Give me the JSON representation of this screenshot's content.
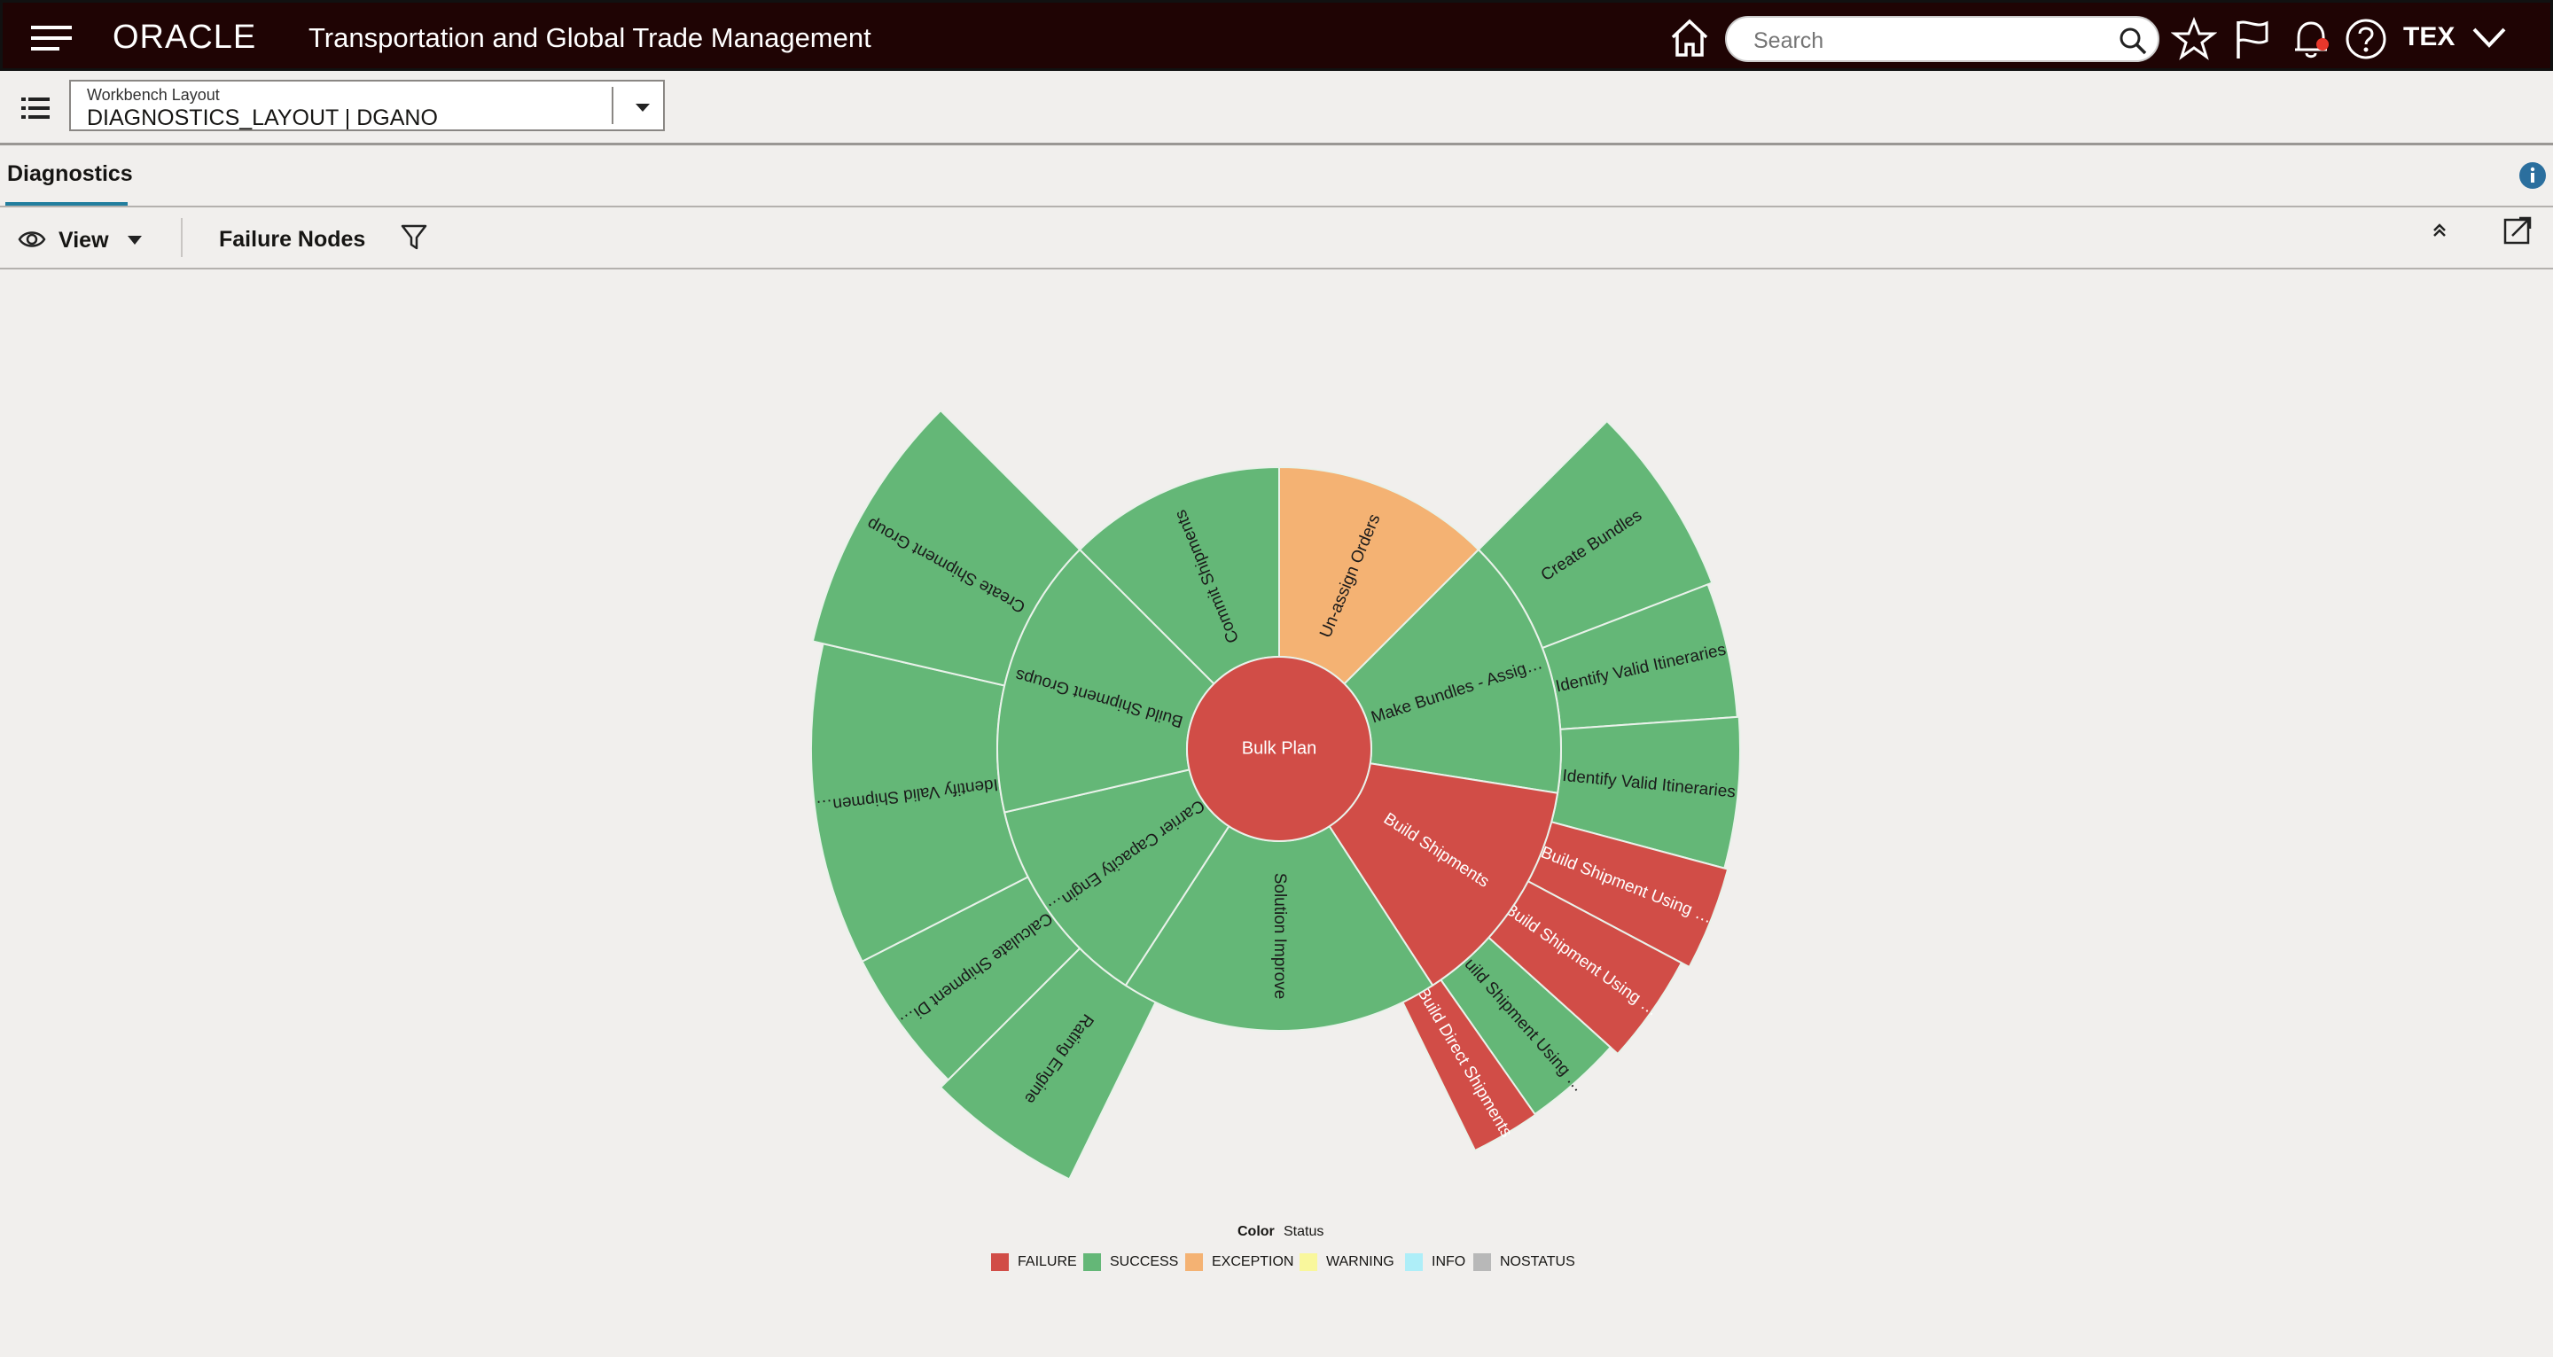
{
  "header": {
    "logo": "ORACLE",
    "app_title": "Transportation and Global Trade Management",
    "search_placeholder": "Search",
    "user": "TEX",
    "bg_color": "#1f0404"
  },
  "layout_bar": {
    "label": "Workbench Layout",
    "value": "DIAGNOSTICS_LAYOUT | DGANO"
  },
  "tab": {
    "title": "Diagnostics"
  },
  "toolbar": {
    "view_label": "View",
    "failure_nodes_label": "Failure Nodes"
  },
  "chart_data": {
    "type": "sunburst",
    "colors": {
      "FAILURE": "#d14d47",
      "SUCCESS": "#64b777",
      "EXCEPTION": "#f4b273",
      "WARNING": "#f9f79c",
      "INFO": "#aeeef8",
      "NOSTATUS": "#b8b8b8"
    },
    "root": {
      "label": "Bulk Plan",
      "status": "FAILURE"
    },
    "level1": [
      {
        "label": "Un-assign Orders",
        "status": "EXCEPTION"
      },
      {
        "label": "Make Bundles - Assig…",
        "status": "SUCCESS"
      },
      {
        "label": "Build Shipments",
        "status": "FAILURE"
      },
      {
        "label": "Solution Improve",
        "status": "SUCCESS"
      },
      {
        "label": "Carrier Capacity Engin…",
        "status": "SUCCESS"
      },
      {
        "label": "Build Shipment Groups",
        "status": "SUCCESS"
      },
      {
        "label": "Commit Shipments",
        "status": "SUCCESS"
      }
    ],
    "level2": [
      {
        "label": "Create Bundles",
        "status": "SUCCESS",
        "parent": "Make Bundles - Assig…"
      },
      {
        "label": "Identify Valid Itineraries",
        "status": "SUCCESS",
        "parent": "Make Bundles - Assig…"
      },
      {
        "label": "Identify Valid Itineraries",
        "status": "SUCCESS",
        "parent": "Make Bundles - Assig…"
      },
      {
        "label": "Build Shipment Using …",
        "status": "FAILURE",
        "parent": "Build Shipments"
      },
      {
        "label": "Build Shipment Using …",
        "status": "FAILURE",
        "parent": "Build Shipments"
      },
      {
        "label": "Build Shipment Using …",
        "status": "SUCCESS",
        "parent": "Build Shipments"
      },
      {
        "label": "Build Direct Shipments",
        "status": "FAILURE",
        "parent": "Build Shipments"
      },
      {
        "label": "Rating Engine",
        "status": "SUCCESS",
        "parent": "Carrier Capacity Engin…"
      },
      {
        "label": "Calculate Shipment Di…",
        "status": "SUCCESS",
        "parent": "Carrier Capacity Engin…"
      },
      {
        "label": "Identify Valid Shipmen…",
        "status": "SUCCESS",
        "parent": "Build Shipment Groups"
      },
      {
        "label": "Create Shipment Group",
        "status": "SUCCESS",
        "parent": "Build Shipment Groups"
      }
    ],
    "legend": {
      "title": "Color",
      "subtitle": "Status",
      "items": [
        "FAILURE",
        "SUCCESS",
        "EXCEPTION",
        "WARNING",
        "INFO",
        "NOSTATUS"
      ]
    }
  }
}
